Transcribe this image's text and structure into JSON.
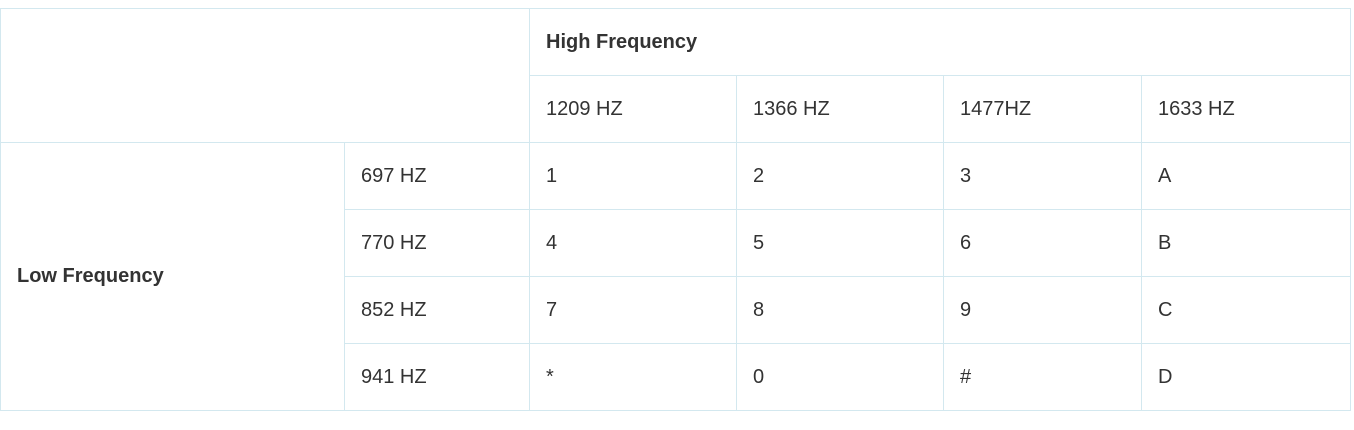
{
  "table": {
    "high_frequency_label": "High Frequency",
    "low_frequency_label": "Low Frequency",
    "high_frequencies": [
      "1209 HZ",
      "1366 HZ",
      "1477HZ",
      "1633 HZ"
    ],
    "rows": [
      {
        "low": "697 HZ",
        "keys": [
          "1",
          "2",
          "3",
          "A"
        ]
      },
      {
        "low": "770 HZ",
        "keys": [
          "4",
          "5",
          "6",
          "B"
        ]
      },
      {
        "low": "852 HZ",
        "keys": [
          "7",
          "8",
          "9",
          "C"
        ]
      },
      {
        "low": "941 HZ",
        "keys": [
          "*",
          "0",
          "#",
          "D"
        ]
      }
    ]
  }
}
